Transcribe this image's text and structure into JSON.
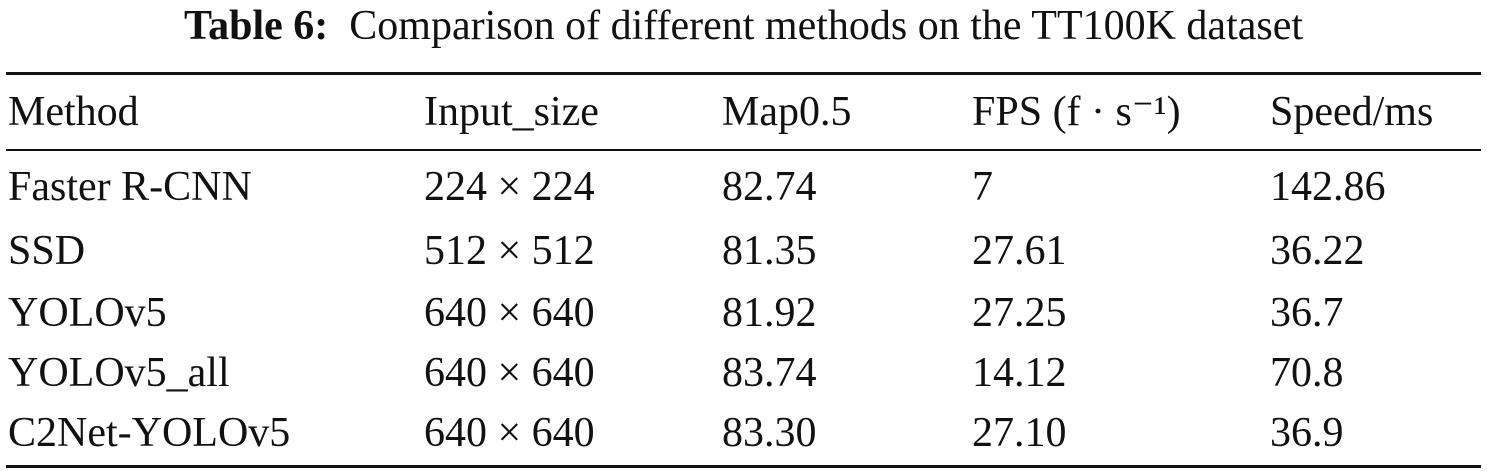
{
  "caption": {
    "label": "Table 6:",
    "text": "Comparison of different methods on the TT100K dataset"
  },
  "table": {
    "headers": [
      "Method",
      "Input_size",
      "Map0.5",
      "FPS (f · s⁻¹)",
      "Speed/ms"
    ],
    "rows": [
      [
        "Faster R-CNN",
        "224 × 224",
        "82.74",
        "7",
        "142.86"
      ],
      [
        "SSD",
        "512 × 512",
        "81.35",
        "27.61",
        "36.22"
      ],
      [
        "YOLOv5",
        "640 × 640",
        "81.92",
        "27.25",
        "36.7"
      ],
      [
        "YOLOv5_all",
        "640 × 640",
        "83.74",
        "14.12",
        "70.8"
      ],
      [
        "C2Net-YOLOv5",
        "640 × 640",
        "83.30",
        "27.10",
        "36.9"
      ]
    ]
  }
}
